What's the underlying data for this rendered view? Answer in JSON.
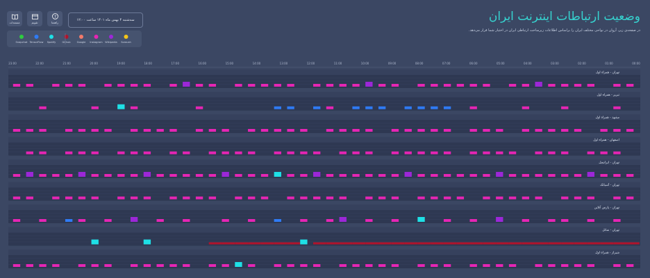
{
  "header": {
    "title": "وضعیت ارتباطات اینترنت ایران",
    "subtitle": "در صفحه‌ی زیر، آروان در نواحی مختلف ایران را براساس اطلاعات زیرساخت ارتباطی ایران در اختیار شما قرار می‌دهد.",
    "date": "سه‌شنبه ۴ بهمن ماه ۱۴۰۱ ساعت ۱۲:۰۰",
    "buttons": [
      "مستندات",
      "تقویم",
      "راهنما"
    ]
  },
  "legend": {
    "items": [
      {
        "name": "Snapchat",
        "color": "#2ecc40"
      },
      {
        "name": "TensorFlow",
        "color": "#2f7bf5"
      },
      {
        "name": "Spotify",
        "color": "#1ee0e6"
      },
      {
        "name": "Github",
        "color": "#b0132b"
      },
      {
        "name": "Google",
        "color": "#f27a6a"
      },
      {
        "name": "Instagram",
        "color": "#e625b4"
      },
      {
        "name": "Wikipedia",
        "color": "#9c27d8"
      },
      {
        "name": "Soroush",
        "color": "#f5c518"
      }
    ]
  },
  "timeline": {
    "labels": [
      "00:00",
      "01:00",
      "02:00",
      "03:00",
      "04:00",
      "05:00",
      "06:00",
      "07:00",
      "08:00",
      "09:00",
      "10:00",
      "11:00",
      "12:00",
      "13:00",
      "14:00",
      "15:00",
      "16:00",
      "17:00",
      "18:00",
      "19:00",
      "20:00",
      "21:00",
      "22:00",
      "23:00"
    ]
  },
  "rows": [
    {
      "label": "تهران - همراه اول",
      "slots": [
        5,
        5,
        null,
        5,
        5,
        5,
        null,
        5,
        5,
        5,
        5,
        null,
        5,
        6,
        5,
        5,
        null,
        5,
        5,
        5,
        5,
        5,
        null,
        5,
        5,
        5,
        5,
        6,
        5,
        5,
        null,
        5,
        5,
        5,
        5,
        5,
        5,
        null,
        5,
        5,
        6,
        5,
        5,
        5,
        5,
        null,
        5,
        5
      ]
    },
    {
      "label": "تبریز - همراه اول",
      "slots": [
        null,
        null,
        5,
        null,
        null,
        null,
        5,
        null,
        2,
        5,
        null,
        null,
        null,
        null,
        5,
        null,
        null,
        null,
        null,
        null,
        1,
        1,
        null,
        1,
        5,
        null,
        1,
        1,
        1,
        null,
        1,
        1,
        1,
        1,
        null,
        5,
        null,
        null,
        null,
        5,
        null,
        null,
        5,
        null,
        null,
        null,
        5,
        null
      ]
    },
    {
      "label": "مشهد - همراه اول",
      "slots": [
        5,
        5,
        5,
        null,
        5,
        5,
        5,
        5,
        null,
        5,
        5,
        5,
        5,
        null,
        5,
        5,
        5,
        null,
        5,
        5,
        5,
        5,
        5,
        null,
        5,
        5,
        5,
        5,
        null,
        5,
        5,
        5,
        5,
        5,
        null,
        5,
        5,
        5,
        null,
        5,
        5,
        5,
        5,
        5,
        null,
        5,
        5,
        5
      ]
    },
    {
      "label": "اصفهان - همراه اول",
      "slots": [
        null,
        5,
        5,
        null,
        5,
        5,
        5,
        null,
        5,
        5,
        5,
        null,
        5,
        5,
        null,
        5,
        5,
        5,
        5,
        null,
        5,
        5,
        5,
        5,
        null,
        5,
        5,
        5,
        null,
        5,
        5,
        5,
        5,
        5,
        null,
        5,
        5,
        5,
        5,
        null,
        5,
        5,
        5,
        null,
        5,
        5,
        5,
        null
      ]
    },
    {
      "label": "تهران - ایرانسل",
      "slots": [
        5,
        6,
        5,
        5,
        5,
        6,
        5,
        5,
        5,
        5,
        6,
        5,
        5,
        5,
        5,
        5,
        6,
        5,
        5,
        5,
        2,
        5,
        5,
        6,
        5,
        5,
        5,
        5,
        5,
        5,
        6,
        5,
        5,
        5,
        5,
        5,
        5,
        6,
        5,
        5,
        5,
        5,
        5,
        5,
        6,
        5,
        5,
        5
      ]
    },
    {
      "label": "تهران - آسیاتک",
      "slots": [
        5,
        5,
        null,
        5,
        5,
        5,
        5,
        null,
        5,
        5,
        5,
        null,
        5,
        5,
        5,
        5,
        null,
        5,
        5,
        5,
        null,
        5,
        5,
        5,
        5,
        5,
        null,
        5,
        5,
        5,
        null,
        5,
        5,
        5,
        5,
        null,
        5,
        5,
        5,
        5,
        5,
        null,
        5,
        5,
        5,
        null,
        5,
        5
      ]
    },
    {
      "label": "تهران - پارس آنلاین",
      "slots": [
        5,
        null,
        5,
        null,
        1,
        5,
        null,
        5,
        null,
        6,
        null,
        5,
        null,
        5,
        null,
        null,
        5,
        null,
        5,
        null,
        1,
        null,
        5,
        null,
        5,
        6,
        null,
        5,
        null,
        5,
        null,
        2,
        null,
        5,
        null,
        5,
        null,
        6,
        null,
        5,
        null,
        5,
        5,
        null,
        5,
        null,
        5,
        null
      ]
    },
    {
      "label": "تهران - شاتل",
      "slots": [
        null,
        null,
        null,
        null,
        null,
        null,
        2,
        null,
        null,
        null,
        2,
        null,
        null,
        null,
        null,
        3,
        3,
        3,
        3,
        3,
        3,
        3,
        2,
        3,
        3,
        3,
        3,
        3,
        3,
        3,
        3,
        3,
        3,
        3,
        3,
        3,
        3,
        3,
        3,
        3,
        3,
        3,
        3,
        3,
        3,
        3,
        3,
        3
      ]
    },
    {
      "label": "شیراز - همراه اول",
      "slots": [
        5,
        5,
        5,
        5,
        null,
        5,
        5,
        5,
        null,
        5,
        5,
        5,
        5,
        5,
        null,
        5,
        5,
        2,
        5,
        null,
        5,
        5,
        5,
        5,
        null,
        5,
        5,
        5,
        5,
        5,
        null,
        5,
        5,
        5,
        null,
        5,
        5,
        5,
        5,
        null,
        5,
        5,
        5,
        5,
        5,
        null,
        5,
        5
      ]
    }
  ]
}
